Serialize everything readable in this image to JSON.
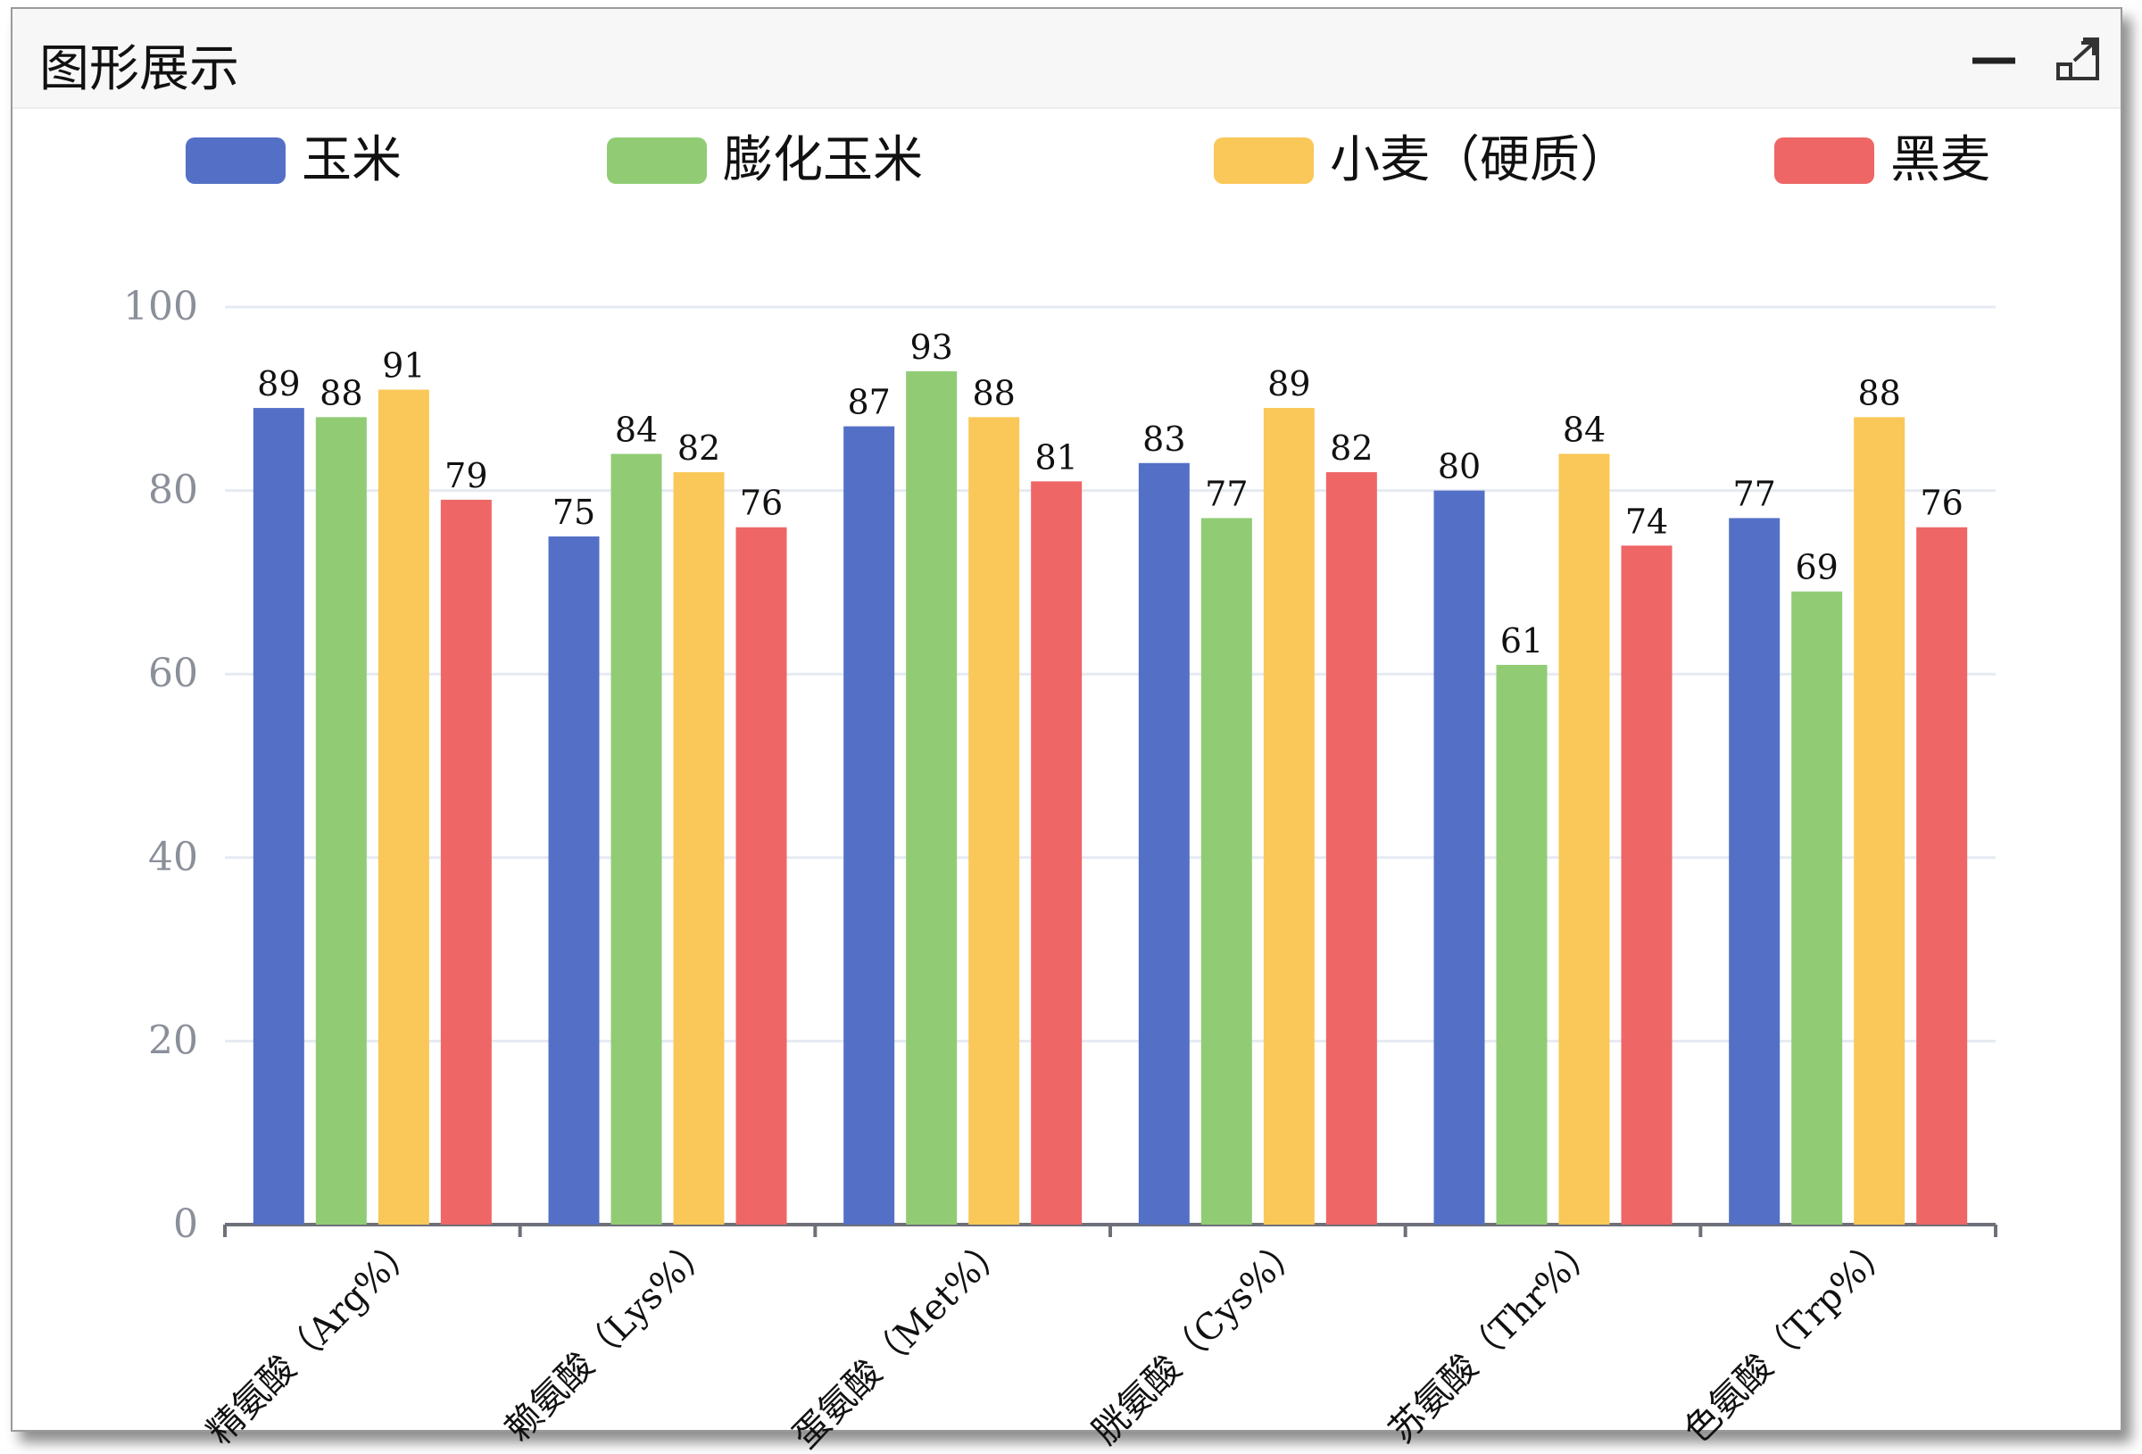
{
  "panel": {
    "title": "图形展示",
    "controls": [
      {
        "icon": "minimize-icon"
      },
      {
        "icon": "expand-icon"
      }
    ]
  },
  "chart_data": {
    "type": "bar",
    "categories": [
      "精氨酸（Arg%）",
      "赖氨酸（Lys%）",
      "蛋氨酸（Met%）",
      "胱氨酸（Cys%）",
      "苏氨酸（Thr%）",
      "色氨酸（Trp%）"
    ],
    "series": [
      {
        "name": "玉米",
        "color": "#5470c6",
        "values": [
          89,
          75,
          87,
          83,
          80,
          77
        ]
      },
      {
        "name": "膨化玉米",
        "color": "#91cc75",
        "values": [
          88,
          84,
          93,
          77,
          61,
          69
        ]
      },
      {
        "name": "小麦（硬质）",
        "color": "#fac858",
        "values": [
          91,
          82,
          88,
          89,
          84,
          88
        ]
      },
      {
        "name": "黑麦",
        "color": "#ee6666",
        "values": [
          79,
          76,
          81,
          82,
          74,
          76
        ]
      }
    ],
    "ylim": [
      0,
      100
    ],
    "yticks": [
      0,
      20,
      40,
      60,
      80,
      100
    ],
    "grid": true,
    "legend": "top",
    "data_labels": true
  }
}
